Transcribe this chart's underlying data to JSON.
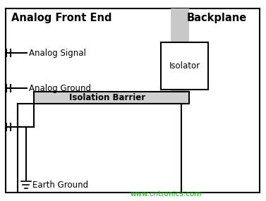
{
  "fig_width": 3.77,
  "fig_height": 2.85,
  "dpi": 100,
  "bg_color": "#ffffff",
  "title_afe": "Analog Front End",
  "title_bp": "Backplane",
  "title_fontsize": 10.5,
  "label_fontsize": 8.5,
  "watermark": "www.cntronics.com",
  "watermark_color": "#00bb00",
  "watermark_fontsize": 7.5,
  "analog_signal_label": "Analog Signal",
  "analog_ground_label": "Analog Ground",
  "isolation_barrier_label": "Isolation Barrier",
  "earth_ground_label": "Earth Ground",
  "isolator_label": "Isolator"
}
